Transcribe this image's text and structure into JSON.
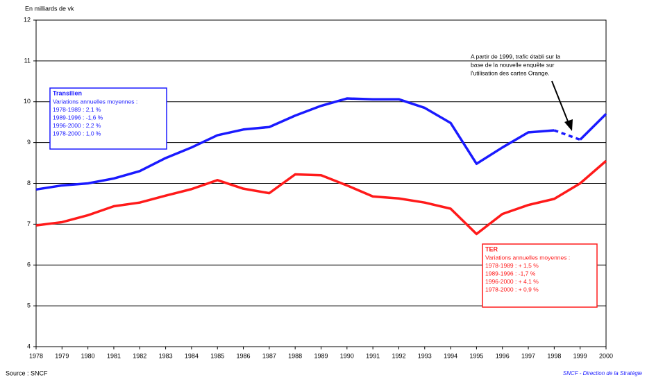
{
  "chart_data": {
    "type": "line",
    "y_label": "En milliards de vk",
    "source": "Source : SNCF",
    "credit": "SNCF - Direction de la Stratégie",
    "x": [
      1978,
      1979,
      1980,
      1981,
      1982,
      1983,
      1984,
      1985,
      1986,
      1987,
      1988,
      1989,
      1990,
      1991,
      1992,
      1993,
      1994,
      1995,
      1996,
      1997,
      1998,
      1999,
      2000
    ],
    "xlim": [
      1978,
      2000
    ],
    "xticks": [
      1978,
      1979,
      1980,
      1981,
      1982,
      1983,
      1984,
      1985,
      1986,
      1987,
      1988,
      1989,
      1990,
      1991,
      1992,
      1993,
      1994,
      1995,
      1996,
      1997,
      1998,
      1999,
      2000
    ],
    "ylim": [
      4,
      12
    ],
    "yticks": [
      4,
      5,
      6,
      7,
      8,
      9,
      10,
      11,
      12
    ],
    "grid": true,
    "series": [
      {
        "name": "Transilien",
        "color": "#1a1aff",
        "dashed_segments": [
          [
            1998,
            1999
          ]
        ],
        "values": [
          7.85,
          7.95,
          8.0,
          8.12,
          8.3,
          8.62,
          8.88,
          9.18,
          9.32,
          9.38,
          9.66,
          9.9,
          10.08,
          10.06,
          10.06,
          9.85,
          9.48,
          8.48,
          8.88,
          9.25,
          9.3,
          9.07,
          9.7
        ]
      },
      {
        "name": "TER",
        "color": "#ff1a1a",
        "dashed_segments": [],
        "values": [
          6.97,
          7.05,
          7.22,
          7.44,
          7.53,
          7.7,
          7.86,
          8.08,
          7.87,
          7.76,
          8.22,
          8.2,
          7.95,
          7.68,
          7.63,
          7.53,
          7.38,
          6.76,
          7.25,
          7.47,
          7.62,
          8.0,
          8.55
        ]
      }
    ],
    "annotations": [
      {
        "title": "Transilien",
        "color": "#1a1aff",
        "lines": [
          "Variations annuelles moyennes :",
          "1978-1989 : 2,1  %",
          "1989-1996 : -1,6 %",
          "1996-2000 : 2,2 %",
          "1978-2000 : 1,0 %"
        ]
      },
      {
        "title": "TER",
        "color": "#ff1a1a",
        "lines": [
          "Variations annuelles moyennes :",
          "1978-1989 : + 1,5  %",
          "1989-1996 : -1,7 %",
          "1996-2000  : + 4,1 %",
          "1978-2000  : + 0,9 %"
        ]
      }
    ],
    "note": [
      "A partir de 1999, trafic établi sur la",
      "base de la nouvelle enquête  sur",
      "l'utilisation des cartes Orange."
    ]
  }
}
